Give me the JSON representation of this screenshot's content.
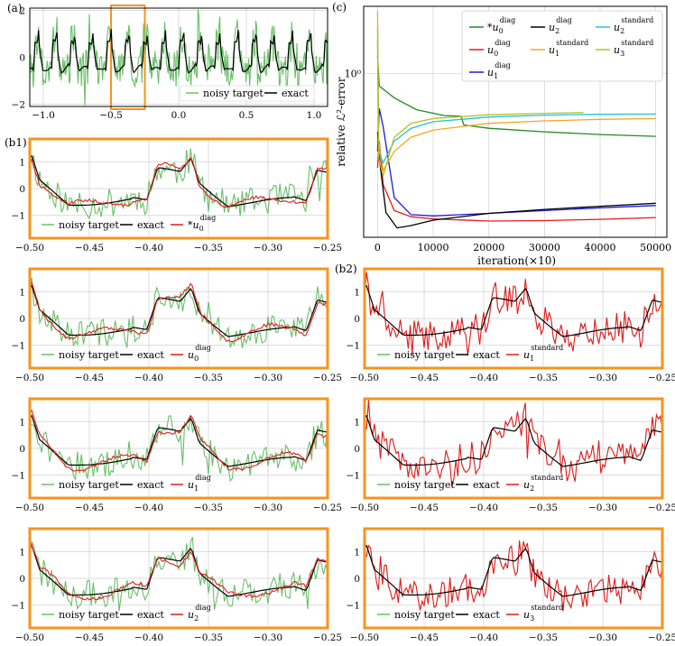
{
  "colors": {
    "noisy": "#6abf69",
    "exact": "#000000",
    "fit": "#e41a1c",
    "frame": "#f7931e",
    "green": "#228b22",
    "red": "#e8181f",
    "blue": "#1a1adb",
    "black": "#000000",
    "orange": "#f5a623",
    "cyan": "#22c3d8",
    "olive": "#bcbf1a",
    "grid": "#cfcfcf"
  },
  "labels": {
    "a": "(a)",
    "b1": "(b1)",
    "b2": "(b2)",
    "c": "(c)",
    "noisy": "noisy target",
    "exact": "exact",
    "diag": "diag",
    "standard": "standard",
    "star": "*"
  },
  "chart_data": [
    {
      "id": "a",
      "type": "line",
      "xlim": [
        -1.1,
        1.1
      ],
      "ylim": [
        -2.1,
        2.1
      ],
      "xticks": [
        -1.0,
        -0.5,
        0.0,
        0.5,
        1.0
      ],
      "xtick_labels": [
        "−1.0",
        "−0.5",
        "0.0",
        "0.5",
        "1.0"
      ],
      "yticks": [
        -2,
        0,
        2
      ],
      "ytick_labels": [
        "−2",
        "0",
        "2"
      ],
      "highlight_x": [
        -0.5,
        -0.25
      ],
      "series": [
        {
          "name": "noisy target"
        },
        {
          "name": "exact"
        }
      ],
      "legend": "lower-right"
    },
    {
      "id": "b1-0",
      "type": "line",
      "group": "b1",
      "xlim": [
        -0.5,
        -0.25
      ],
      "ylim": [
        -1.85,
        1.85
      ],
      "xticks": [
        -0.5,
        -0.45,
        -0.4,
        -0.35,
        -0.3,
        -0.25
      ],
      "xtick_labels": [
        "−0.50",
        "−0.45",
        "−0.40",
        "−0.35",
        "−0.30",
        "−0.25"
      ],
      "yticks": [
        -1,
        0,
        1
      ],
      "ytick_labels": [
        "−1",
        "0",
        "1"
      ],
      "series": [
        {
          "name": "noisy target"
        },
        {
          "name": "exact"
        },
        {
          "name": "*u_0^diag",
          "base": "u",
          "sub": "0",
          "sup": "diag",
          "star": true,
          "fit": "smooth"
        }
      ]
    },
    {
      "id": "b1-1",
      "type": "line",
      "group": "b1",
      "xlim": [
        -0.5,
        -0.25
      ],
      "ylim": [
        -1.85,
        1.85
      ],
      "xticks": [
        -0.5,
        -0.45,
        -0.4,
        -0.35,
        -0.3,
        -0.25
      ],
      "xtick_labels": [
        "−0.50",
        "−0.45",
        "−0.40",
        "−0.35",
        "−0.30",
        "−0.25"
      ],
      "yticks": [
        -1,
        0,
        1
      ],
      "ytick_labels": [
        "−1",
        "0",
        "1"
      ],
      "series": [
        {
          "name": "noisy target"
        },
        {
          "name": "exact"
        },
        {
          "name": "u_0^diag",
          "base": "u",
          "sub": "0",
          "sup": "diag",
          "fit": "smooth"
        }
      ]
    },
    {
      "id": "b1-2",
      "type": "line",
      "group": "b1",
      "xlim": [
        -0.5,
        -0.25
      ],
      "ylim": [
        -1.85,
        1.85
      ],
      "xticks": [
        -0.5,
        -0.45,
        -0.4,
        -0.35,
        -0.3,
        -0.25
      ],
      "xtick_labels": [
        "−0.50",
        "−0.45",
        "−0.40",
        "−0.35",
        "−0.30",
        "−0.25"
      ],
      "yticks": [
        -1,
        0,
        1
      ],
      "ytick_labels": [
        "−1",
        "0",
        "1"
      ],
      "series": [
        {
          "name": "noisy target"
        },
        {
          "name": "exact"
        },
        {
          "name": "u_1^diag",
          "base": "u",
          "sub": "1",
          "sup": "diag",
          "fit": "smooth"
        }
      ]
    },
    {
      "id": "b1-3",
      "type": "line",
      "group": "b1",
      "xlim": [
        -0.5,
        -0.25
      ],
      "ylim": [
        -1.85,
        1.85
      ],
      "xticks": [
        -0.5,
        -0.45,
        -0.4,
        -0.35,
        -0.3,
        -0.25
      ],
      "xtick_labels": [
        "−0.50",
        "−0.45",
        "−0.40",
        "−0.35",
        "−0.30",
        "−0.25"
      ],
      "yticks": [
        -1,
        0,
        1
      ],
      "ytick_labels": [
        "−1",
        "0",
        "1"
      ],
      "series": [
        {
          "name": "noisy target"
        },
        {
          "name": "exact"
        },
        {
          "name": "u_2^diag",
          "base": "u",
          "sub": "2",
          "sup": "diag",
          "fit": "smooth"
        }
      ]
    },
    {
      "id": "b2-1",
      "type": "line",
      "group": "b2",
      "xlim": [
        -0.5,
        -0.25
      ],
      "ylim": [
        -1.85,
        1.85
      ],
      "xticks": [
        -0.5,
        -0.45,
        -0.4,
        -0.35,
        -0.3,
        -0.25
      ],
      "xtick_labels": [
        "−0.50",
        "−0.45",
        "−0.40",
        "−0.35",
        "−0.30",
        "−0.25"
      ],
      "yticks": [
        -1,
        0,
        1
      ],
      "ytick_labels": [
        "−1",
        "0",
        "1"
      ],
      "series": [
        {
          "name": "noisy target"
        },
        {
          "name": "exact"
        },
        {
          "name": "u_1^standard",
          "base": "u",
          "sub": "1",
          "sup": "standard",
          "fit": "noisy"
        }
      ]
    },
    {
      "id": "b2-2",
      "type": "line",
      "group": "b2",
      "xlim": [
        -0.5,
        -0.25
      ],
      "ylim": [
        -1.85,
        1.85
      ],
      "xticks": [
        -0.5,
        -0.45,
        -0.4,
        -0.35,
        -0.3,
        -0.25
      ],
      "xtick_labels": [
        "−0.50",
        "−0.45",
        "−0.40",
        "−0.35",
        "−0.30",
        "−0.25"
      ],
      "yticks": [
        -1,
        0,
        1
      ],
      "ytick_labels": [
        "−1",
        "0",
        "1"
      ],
      "series": [
        {
          "name": "noisy target"
        },
        {
          "name": "exact"
        },
        {
          "name": "u_2^standard",
          "base": "u",
          "sub": "2",
          "sup": "standard",
          "fit": "noisy"
        }
      ]
    },
    {
      "id": "b2-3",
      "type": "line",
      "group": "b2",
      "xlim": [
        -0.5,
        -0.25
      ],
      "ylim": [
        -1.85,
        1.85
      ],
      "xticks": [
        -0.5,
        -0.45,
        -0.4,
        -0.35,
        -0.3,
        -0.25
      ],
      "xtick_labels": [
        "−0.50",
        "−0.45",
        "−0.40",
        "−0.35",
        "−0.30",
        "−0.25"
      ],
      "yticks": [
        -1,
        0,
        1
      ],
      "ytick_labels": [
        "−1",
        "0",
        "1"
      ],
      "series": [
        {
          "name": "noisy target"
        },
        {
          "name": "exact"
        },
        {
          "name": "u_3^standard",
          "base": "u",
          "sub": "3",
          "sup": "standard",
          "fit": "noisy"
        }
      ]
    },
    {
      "id": "c",
      "type": "line",
      "xlabel": "iteration(×10)",
      "ylabel": "relative ℒ²-error",
      "xlim": [
        -2500,
        52000
      ],
      "xticks": [
        0,
        10000,
        20000,
        30000,
        40000,
        50000
      ],
      "xtick_labels": [
        "0",
        "10000",
        "20000",
        "30000",
        "40000",
        "50000"
      ],
      "ylog_range": [
        -0.73,
        0.3
      ],
      "ytick_label": "10⁰",
      "series": [
        {
          "name": "*u_0^diag",
          "color": "green",
          "base": "u",
          "sub": "0",
          "sup": "diag",
          "star": true,
          "points": [
            [
              0,
              1.2
            ],
            [
              300,
              0.88
            ],
            [
              3000,
              0.78
            ],
            [
              7000,
              0.69
            ],
            [
              12000,
              0.65
            ],
            [
              15000,
              0.645
            ],
            [
              15500,
              0.59
            ],
            [
              20000,
              0.57
            ],
            [
              30000,
              0.55
            ],
            [
              40000,
              0.535
            ],
            [
              50000,
              0.525
            ]
          ]
        },
        {
          "name": "u_0^diag",
          "color": "red",
          "base": "u",
          "sub": "0",
          "sup": "diag",
          "points": [
            [
              0,
              0.38
            ],
            [
              300,
              0.5
            ],
            [
              1000,
              0.32
            ],
            [
              3000,
              0.245
            ],
            [
              6000,
              0.23
            ],
            [
              10000,
              0.225
            ],
            [
              20000,
              0.22
            ],
            [
              30000,
              0.221
            ],
            [
              40000,
              0.224
            ],
            [
              50000,
              0.228
            ]
          ]
        },
        {
          "name": "u_1^diag",
          "color": "blue",
          "base": "u",
          "sub": "1",
          "sup": "diag",
          "points": [
            [
              0,
              0.45
            ],
            [
              300,
              0.7
            ],
            [
              1000,
              0.58
            ],
            [
              3000,
              0.28
            ],
            [
              6000,
              0.235
            ],
            [
              10000,
              0.232
            ],
            [
              20000,
              0.238
            ],
            [
              30000,
              0.245
            ],
            [
              40000,
              0.252
            ],
            [
              50000,
              0.258
            ]
          ]
        },
        {
          "name": "u_2^diag",
          "color": "black",
          "base": "u",
          "sub": "2",
          "sup": "diag",
          "points": [
            [
              0,
              0.55
            ],
            [
              300,
              0.42
            ],
            [
              1500,
              0.24
            ],
            [
              3500,
              0.205
            ],
            [
              6000,
              0.21
            ],
            [
              10000,
              0.222
            ],
            [
              20000,
              0.238
            ],
            [
              30000,
              0.248
            ],
            [
              40000,
              0.256
            ],
            [
              50000,
              0.264
            ]
          ]
        },
        {
          "name": "u_1^standard",
          "color": "orange",
          "base": "u",
          "sub": "1",
          "sup": "standard",
          "points": [
            [
              0,
              1.9
            ],
            [
              200,
              0.5
            ],
            [
              1000,
              0.37
            ],
            [
              3000,
              0.45
            ],
            [
              6000,
              0.52
            ],
            [
              10000,
              0.56
            ],
            [
              20000,
              0.6
            ],
            [
              30000,
              0.615
            ],
            [
              40000,
              0.625
            ],
            [
              50000,
              0.63
            ]
          ]
        },
        {
          "name": "u_2^standard",
          "color": "cyan",
          "base": "u",
          "sub": "2",
          "sup": "standard",
          "points": [
            [
              0,
              1.4
            ],
            [
              200,
              0.45
            ],
            [
              1000,
              0.4
            ],
            [
              3000,
              0.5
            ],
            [
              6000,
              0.57
            ],
            [
              10000,
              0.61
            ],
            [
              20000,
              0.64
            ],
            [
              30000,
              0.653
            ],
            [
              40000,
              0.658
            ],
            [
              50000,
              0.66
            ]
          ]
        },
        {
          "name": "u_3^standard",
          "color": "olive",
          "base": "u",
          "sub": "3",
          "sup": "standard",
          "points": [
            [
              0,
              1.6
            ],
            [
              200,
              0.42
            ],
            [
              1000,
              0.35
            ],
            [
              3000,
              0.52
            ],
            [
              6000,
              0.6
            ],
            [
              10000,
              0.63
            ],
            [
              20000,
              0.655
            ],
            [
              30000,
              0.665
            ],
            [
              37000,
              0.67
            ]
          ]
        }
      ],
      "legend": "top-right"
    }
  ]
}
